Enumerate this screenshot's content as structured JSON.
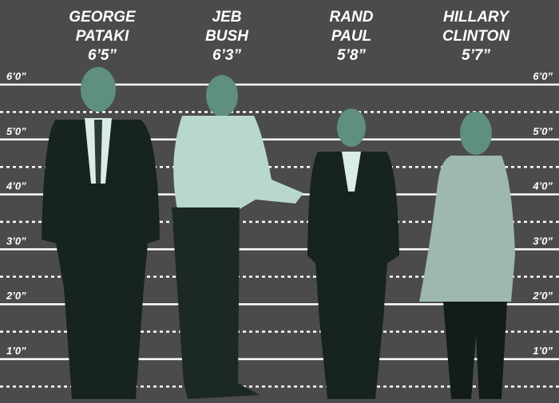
{
  "people": [
    {
      "name_lines": [
        "GEORGE",
        "PATAKI"
      ],
      "height": "6’5”"
    },
    {
      "name_lines": [
        "JEB",
        "BUSH"
      ],
      "height": "6’3”"
    },
    {
      "name_lines": [
        "RAND",
        "PAUL"
      ],
      "height": "5’8”"
    },
    {
      "name_lines": [
        "HILLARY",
        "CLINTON"
      ],
      "height": "5’7”"
    }
  ],
  "scale": [
    "6’0”",
    "5’0”",
    "4’0”",
    "3’0”",
    "2’0”",
    "1’0”"
  ]
}
